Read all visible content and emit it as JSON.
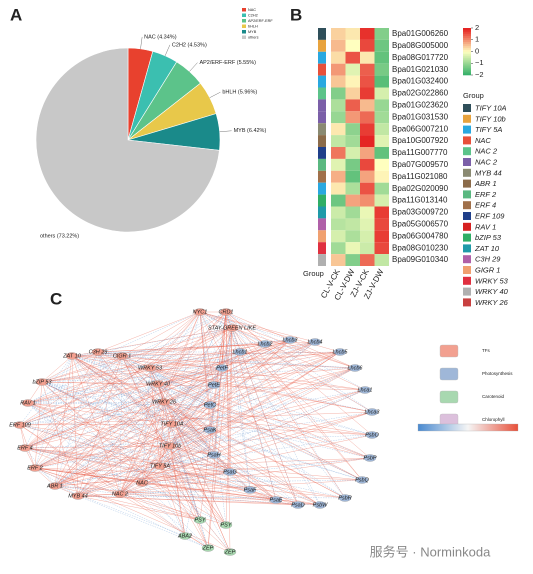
{
  "figure": {
    "panel_labels": [
      "A",
      "B",
      "C"
    ],
    "watermark": "服务号 · Norminkoda"
  },
  "chart_data": [
    {
      "type": "pie",
      "categories": [
        "NAC",
        "C2H2",
        "AP2/ERF-ERF",
        "bHLH",
        "MYB",
        "others"
      ],
      "values": [
        4.34,
        4.53,
        5.55,
        5.96,
        6.42,
        73.22
      ],
      "value_labels": [
        "NAC (4.34%)",
        "C2H2 (4.53%)",
        "AP2/ERF-ERF (5.55%)",
        "bHLH (5.96%)",
        "MYB (6.42%)",
        "others (73.22%)"
      ],
      "colors": [
        "#e8412e",
        "#3bbfb0",
        "#5cc38a",
        "#e8c84a",
        "#1a8a8a",
        "#c8c8c8"
      ]
    },
    {
      "type": "heatmap",
      "columns": [
        "CL-V-CK",
        "CL-V-DW",
        "ZJ-V-CK",
        "ZJ-V-DW"
      ],
      "rows": [
        "Bpa01G006260",
        "Bpa08G005000",
        "Bpa08G017720",
        "Bpa01G021030",
        "Bpa01G032400",
        "Bpa02G022860",
        "Bpa01G023620",
        "Bpa01G031530",
        "Bpa06G007210",
        "Bpa10G007920",
        "Bpa11G007770",
        "Bpa07G009570",
        "Bpa11G021080",
        "Bpa02G020090",
        "Bpa11G013140",
        "Bpa03G009720",
        "Bpa05G006570",
        "Bpa06G004780",
        "Bpa08G010230",
        "Bpa09G010340"
      ],
      "values": [
        [
          0.4,
          0.2,
          1.8,
          -1.2
        ],
        [
          0.6,
          0.0,
          1.6,
          -1.4
        ],
        [
          0.3,
          1.5,
          0.2,
          -1.5
        ],
        [
          0.9,
          -0.3,
          1.4,
          -1.3
        ],
        [
          0.5,
          0.1,
          1.5,
          -1.6
        ],
        [
          -1.2,
          0.4,
          1.7,
          -0.4
        ],
        [
          -0.8,
          1.4,
          0.6,
          -1.0
        ],
        [
          -1.0,
          0.9,
          1.3,
          -0.9
        ],
        [
          0.2,
          -1.1,
          1.7,
          -0.6
        ],
        [
          -0.6,
          -0.9,
          1.9,
          -0.3
        ],
        [
          1.2,
          -0.4,
          0.8,
          -1.5
        ],
        [
          -0.3,
          -1.3,
          1.6,
          0.0
        ],
        [
          0.7,
          -1.5,
          0.8,
          0.1
        ],
        [
          0.2,
          -0.8,
          1.5,
          -0.9
        ],
        [
          -1.4,
          0.8,
          1.0,
          -0.4
        ],
        [
          -0.5,
          -0.9,
          -0.2,
          1.7
        ],
        [
          -0.7,
          -0.6,
          -0.3,
          1.6
        ],
        [
          -0.4,
          -0.8,
          -0.4,
          1.7
        ],
        [
          -0.9,
          -0.2,
          -0.5,
          1.6
        ],
        [
          0.5,
          -1.2,
          1.3,
          -0.6
        ]
      ],
      "colorbar_ticks": [
        2,
        1,
        0,
        {
          "value": -1,
          "label": "−1"
        },
        {
          "value": -2,
          "label": "−2"
        }
      ],
      "clim": [
        -2,
        2
      ],
      "colors": [
        "#2fae66",
        "#ffffbf",
        "#e41a1c"
      ],
      "group_title": "Group",
      "groups": [
        {
          "name": "TIFY 10A",
          "color": "#2f4f5a"
        },
        {
          "name": "TIFY 10b",
          "color": "#e8a33d"
        },
        {
          "name": "TIFY 5A",
          "color": "#29a8e0"
        },
        {
          "name": "NAC",
          "color": "#e8503a"
        },
        {
          "name": "NAC 2",
          "color": "#5cc38a"
        },
        {
          "name": "NAC 2",
          "color": "#7b5fa8"
        },
        {
          "name": "MYB 44",
          "color": "#8a8a72"
        },
        {
          "name": "ABR 1",
          "color": "#8b6b4a"
        },
        {
          "name": "ERF 2",
          "color": "#5ab880"
        },
        {
          "name": "ERF 4",
          "color": "#a0704a"
        },
        {
          "name": "ERF 109",
          "color": "#1f3f8a"
        },
        {
          "name": "RAV 1",
          "color": "#d62020"
        },
        {
          "name": "bZIP 53",
          "color": "#2fae66"
        },
        {
          "name": "ZAT 10",
          "color": "#1f9aa8"
        },
        {
          "name": "C3H 29",
          "color": "#b060a8"
        },
        {
          "name": "GIGR 1",
          "color": "#f0a070"
        },
        {
          "name": "WRKY 53",
          "color": "#e03040"
        },
        {
          "name": "WRKY 40",
          "color": "#b0b0b0"
        },
        {
          "name": "WRKY 26",
          "color": "#c84040"
        }
      ],
      "row_groups": [
        0,
        1,
        2,
        3,
        2,
        4,
        5,
        5,
        6,
        7,
        10,
        8,
        9,
        2,
        12,
        13,
        14,
        15,
        16,
        17
      ]
    },
    {
      "type": "network",
      "groups": [
        {
          "name": "TFs",
          "color": "#f2a090"
        },
        {
          "name": "Photosynthesis",
          "color": "#9fb7d8"
        },
        {
          "name": "Carotenoid",
          "color": "#a8d8b0"
        },
        {
          "name": "Chlorophyll",
          "color": "#dcc0dc"
        }
      ],
      "nodes": [
        {
          "label": "NYC1",
          "group": 0
        },
        {
          "label": "CRD1",
          "group": 0
        },
        {
          "label": "STAY-GREEN LIKE",
          "group": 0
        },
        {
          "label": "CIGR 1",
          "group": 0
        },
        {
          "label": "C3H 29",
          "group": 0
        },
        {
          "label": "ZAT 10",
          "group": 0
        },
        {
          "label": "bZIP 53",
          "group": 0
        },
        {
          "label": "RAV 1",
          "group": 0
        },
        {
          "label": "ERF 109",
          "group": 0
        },
        {
          "label": "ERF 4",
          "group": 0
        },
        {
          "label": "ERF 2",
          "group": 0
        },
        {
          "label": "ABR 1",
          "group": 0
        },
        {
          "label": "MYB 44",
          "group": 0
        },
        {
          "label": "NAC 2",
          "group": 0
        },
        {
          "label": "NAC",
          "group": 0
        },
        {
          "label": "WRKY 53",
          "group": 0
        },
        {
          "label": "WRKY 40",
          "group": 0
        },
        {
          "label": "WRKY 26",
          "group": 0
        },
        {
          "label": "TIFY 10A",
          "group": 0
        },
        {
          "label": "TIFY 10b",
          "group": 0
        },
        {
          "label": "TIFY 5A",
          "group": 0
        },
        {
          "label": "Lhcb1",
          "group": 1
        },
        {
          "label": "Lhcb2",
          "group": 1
        },
        {
          "label": "Lhcb3",
          "group": 1
        },
        {
          "label": "Lhcb4",
          "group": 1
        },
        {
          "label": "Lhcb5",
          "group": 1
        },
        {
          "label": "Lhcb6",
          "group": 1
        },
        {
          "label": "Lhca1",
          "group": 1
        },
        {
          "label": "Lhca3",
          "group": 1
        },
        {
          "label": "PsbO",
          "group": 1
        },
        {
          "label": "PsbP",
          "group": 1
        },
        {
          "label": "PsbQ",
          "group": 1
        },
        {
          "label": "PsbR",
          "group": 1
        },
        {
          "label": "PsbW",
          "group": 1
        },
        {
          "label": "PsaD",
          "group": 1
        },
        {
          "label": "PsaE",
          "group": 1
        },
        {
          "label": "PsaF",
          "group": 1
        },
        {
          "label": "PsaG",
          "group": 1
        },
        {
          "label": "PsaH",
          "group": 1
        },
        {
          "label": "PsaK",
          "group": 1
        },
        {
          "label": "PetC",
          "group": 1
        },
        {
          "label": "PetE",
          "group": 1
        },
        {
          "label": "PetF",
          "group": 1
        },
        {
          "label": "PSY",
          "group": 2
        },
        {
          "label": "PSY",
          "group": 2
        },
        {
          "label": "ABA2",
          "group": 2
        },
        {
          "label": "ZEP",
          "group": 2
        },
        {
          "label": "ZEP",
          "group": 2
        }
      ]
    }
  ]
}
